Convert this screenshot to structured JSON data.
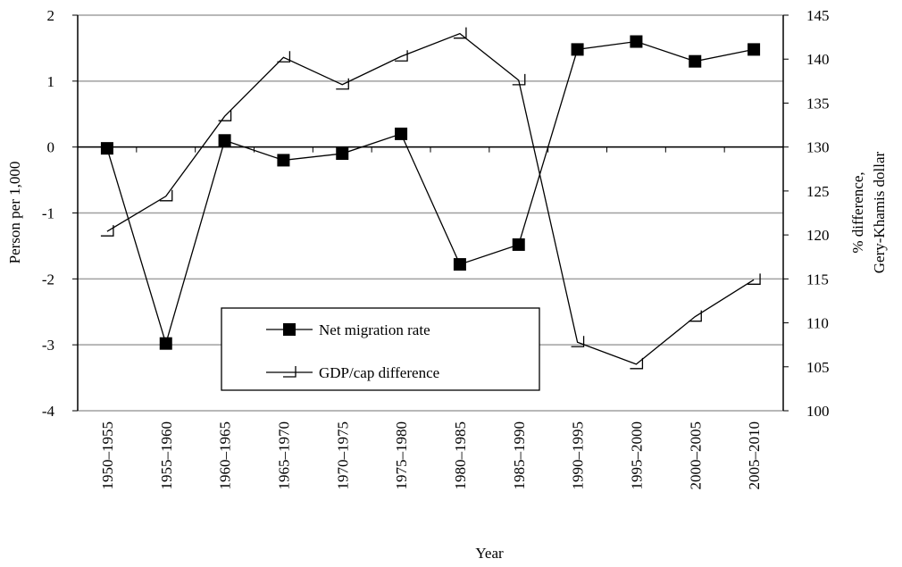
{
  "chart_data": {
    "type": "line",
    "x_label": "Year",
    "y_label": "Person per 1,000",
    "y2_label": [
      "% difference,",
      "Gery-Khamis dollar"
    ],
    "categories": [
      "1950–1955",
      "1955–1960",
      "1960–1965",
      "1965–1970",
      "1970–1975",
      "1975–1980",
      "1980–1985",
      "1985–1990",
      "1990–1995",
      "1995–2000",
      "2000–2005",
      "2005–2010"
    ],
    "series": [
      {
        "name": "Net migration rate",
        "color": "#000000",
        "marker": "square",
        "values": [
          -0.02,
          -2.98,
          0.1,
          -0.2,
          -0.1,
          0.2,
          -1.78,
          -1.48,
          1.48,
          1.6,
          1.3,
          1.48
        ]
      },
      {
        "name": "GDP/cap difference",
        "color": "#000000",
        "marker": "triangle",
        "axis": "y2",
        "values": [
          120.4,
          124.4,
          133.5,
          140.2,
          137.1,
          140.3,
          142.9,
          137.6,
          107.8,
          105.3,
          110.7,
          114.9
        ]
      }
    ],
    "ylim": [
      -4,
      2
    ],
    "yticks": [
      -4,
      -3,
      -2,
      -1,
      0,
      1,
      2
    ],
    "y2lim": [
      100,
      145
    ],
    "y2ticks": [
      100,
      105,
      110,
      115,
      120,
      125,
      130,
      135,
      140,
      145
    ],
    "grid": true
  }
}
